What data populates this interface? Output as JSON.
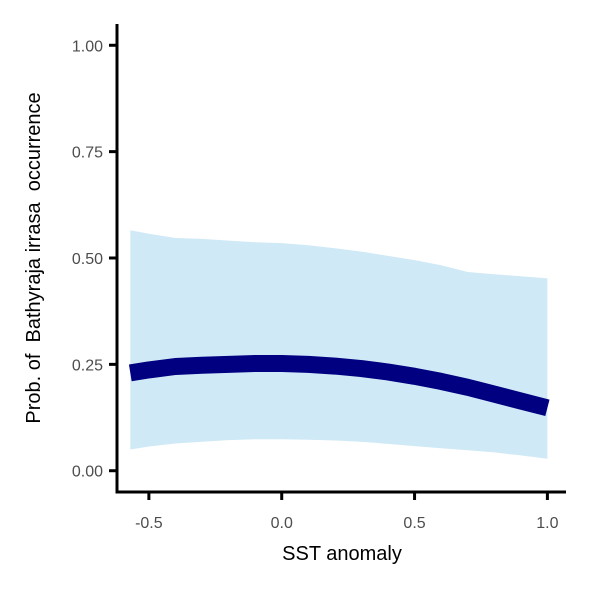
{
  "chart_data": {
    "type": "line",
    "xlabel": "SST anomaly",
    "ylabel": "Prob. of  Bathyraja irrasa  occurrence",
    "xlim": [
      -0.62,
      1.07
    ],
    "ylim": [
      -0.05,
      1.05
    ],
    "x_ticks": [
      -0.5,
      0.0,
      0.5,
      1.0
    ],
    "x_tick_labels": [
      "-0.5",
      "0.0",
      "0.5",
      "1.0"
    ],
    "y_ticks": [
      0.0,
      0.25,
      0.5,
      0.75,
      1.0
    ],
    "y_tick_labels": [
      "0.00",
      "0.25",
      "0.50",
      "0.75",
      "1.00"
    ],
    "grid": false,
    "series": [
      {
        "x": [
          -0.57,
          -0.5,
          -0.4,
          -0.3,
          -0.2,
          -0.1,
          0.0,
          0.1,
          0.2,
          0.3,
          0.4,
          0.5,
          0.6,
          0.7,
          0.8,
          0.9,
          1.0
        ],
        "y": [
          0.23,
          0.237,
          0.245,
          0.248,
          0.25,
          0.252,
          0.252,
          0.25,
          0.246,
          0.24,
          0.232,
          0.222,
          0.21,
          0.196,
          0.18,
          0.164,
          0.148
        ],
        "lower": [
          0.05,
          0.057,
          0.064,
          0.068,
          0.072,
          0.074,
          0.074,
          0.073,
          0.071,
          0.068,
          0.063,
          0.058,
          0.053,
          0.048,
          0.043,
          0.036,
          0.028
        ],
        "upper": [
          0.565,
          0.557,
          0.547,
          0.545,
          0.541,
          0.537,
          0.535,
          0.53,
          0.523,
          0.515,
          0.505,
          0.495,
          0.483,
          0.467,
          0.462,
          0.457,
          0.452
        ]
      }
    ],
    "colors": {
      "line": "#000080",
      "band": "#cfe9f6",
      "axis": "#000000"
    }
  }
}
